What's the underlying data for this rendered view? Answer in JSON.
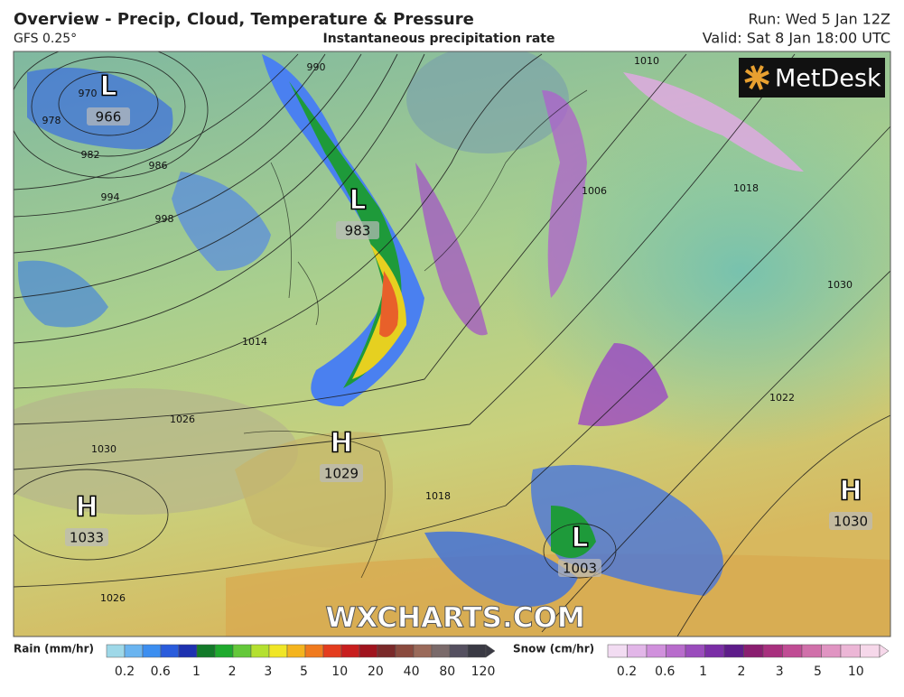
{
  "header": {
    "title": "Overview - Precip, Cloud, Temperature & Pressure",
    "model": "GFS 0.25°",
    "subtitle": "Instantaneous precipitation rate",
    "run": "Run: Wed 5 Jan 12Z",
    "valid": "Valid: Sat 8 Jan 18:00 UTC"
  },
  "logo": "MetDesk",
  "watermark": "WXCHARTS.COM",
  "systems": [
    {
      "symbol": "L",
      "pressure": "966"
    },
    {
      "symbol": "L",
      "pressure": "983"
    },
    {
      "symbol": "H",
      "pressure": "1029"
    },
    {
      "symbol": "H",
      "pressure": "1033"
    },
    {
      "symbol": "L",
      "pressure": "1003"
    },
    {
      "symbol": "H",
      "pressure": "1030"
    }
  ],
  "isobar_labels": [
    "970",
    "978",
    "982",
    "986",
    "994",
    "998",
    "990",
    "1010",
    "1018",
    "1030",
    "1014",
    "1026",
    "1030",
    "1026",
    "1006",
    "1022",
    "1018"
  ],
  "legend": {
    "rain": {
      "label": "Rain (mm/hr)",
      "ticks": [
        0.2,
        0.6,
        1,
        2,
        3,
        5,
        10,
        20,
        40,
        80,
        120
      ]
    },
    "snow": {
      "label": "Snow (cm/hr)",
      "ticks": [
        0.2,
        0.6,
        1,
        2,
        3,
        5,
        10
      ]
    }
  }
}
